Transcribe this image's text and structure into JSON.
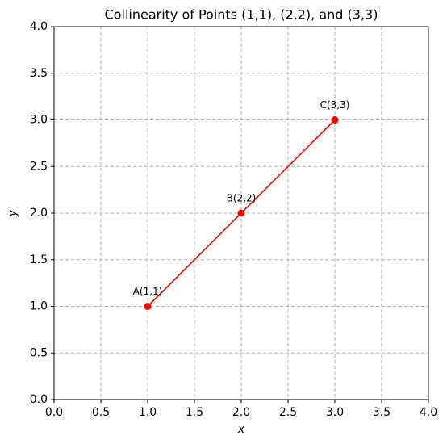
{
  "chart_data": {
    "type": "line",
    "title": "Collinearity of Points (1,1), (2,2), and (3,3)",
    "x_label": "x",
    "y_label": "y",
    "x": [
      1,
      2,
      3
    ],
    "series": [
      {
        "color": "#ff0000",
        "values": [
          1,
          2,
          3
        ]
      }
    ],
    "point_labels": [
      "A(1,1)",
      "B(2,2)",
      "C(3,3)"
    ],
    "xlim": [
      0,
      4
    ],
    "ylim": [
      0,
      4
    ],
    "xticks": [
      {
        "value": 0,
        "label": "0.0"
      },
      0.5,
      {
        "value": 1,
        "label": "1.0"
      },
      1.5,
      {
        "value": 2,
        "label": "2.0"
      },
      2.5,
      {
        "value": 3,
        "label": "3.0"
      },
      3.5,
      {
        "value": 4,
        "label": "4.0"
      }
    ],
    "yticks": [
      {
        "value": 0,
        "label": "0.0"
      },
      0.5,
      {
        "value": 1,
        "label": "1.0"
      },
      1.5,
      {
        "value": 2,
        "label": "2.0"
      },
      2.5,
      {
        "value": 3,
        "label": "3.0"
      },
      3.5,
      {
        "value": 4,
        "label": "4.0"
      }
    ],
    "grid": true
  }
}
